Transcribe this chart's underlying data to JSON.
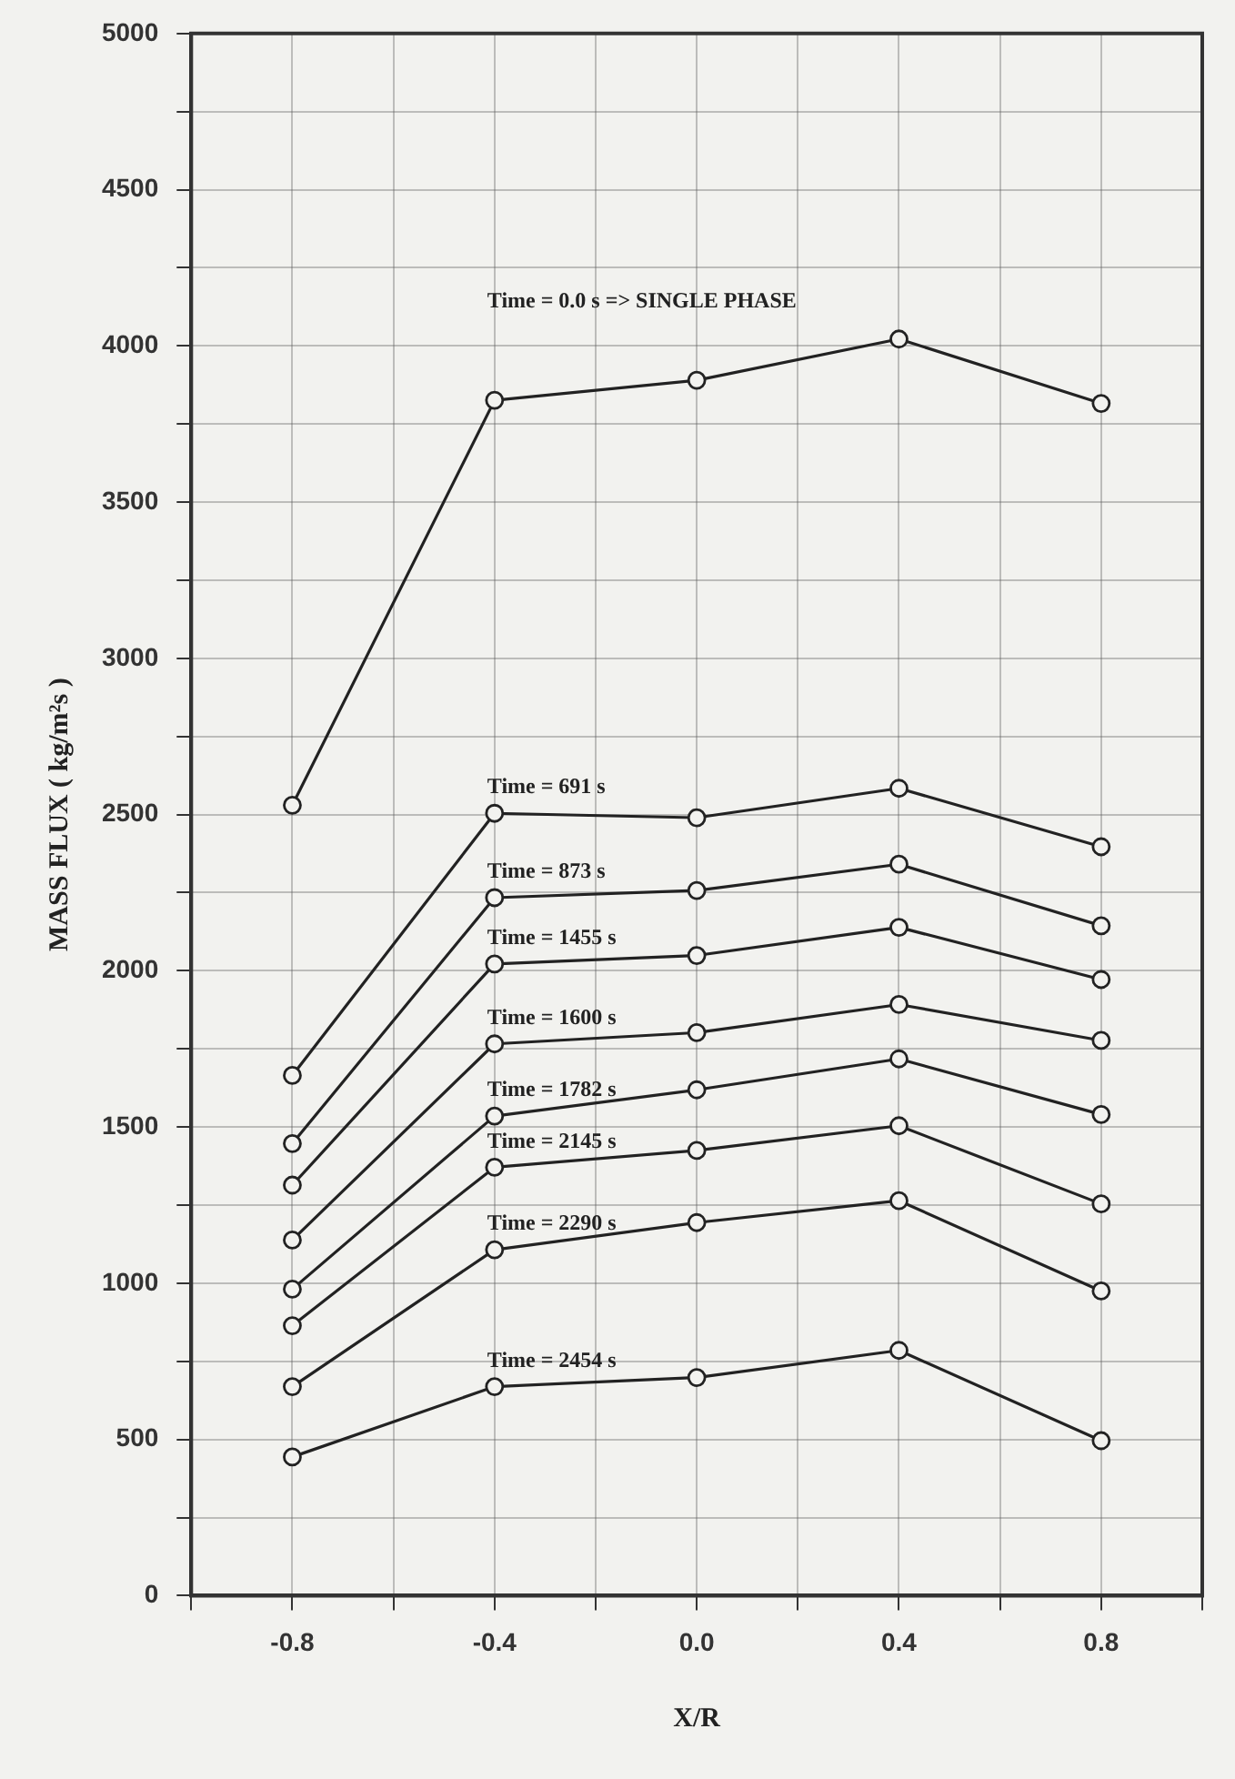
{
  "chart_data": {
    "type": "line",
    "xlabel": "X/R",
    "ylabel": "MASS FLUX ( kg/m²s )",
    "x": [
      -0.8,
      -0.4,
      0.0,
      0.4,
      0.8
    ],
    "series": [
      {
        "name": "Time = 0.0 s => SINGLE PHASE",
        "color": "#222222",
        "values": [
          2530,
          3826,
          3890,
          4022,
          3816
        ]
      },
      {
        "name": "Time = 691 s",
        "color": "#222222",
        "values": [
          1665,
          2504,
          2490,
          2584,
          2397
        ]
      },
      {
        "name": "Time = 873 s",
        "color": "#222222",
        "values": [
          1447,
          2234,
          2257,
          2341,
          2144
        ]
      },
      {
        "name": "Time = 1455 s",
        "color": "#222222",
        "values": [
          1314,
          2022,
          2049,
          2139,
          1972
        ]
      },
      {
        "name": "Time = 1600 s",
        "color": "#222222",
        "values": [
          1138,
          1766,
          1802,
          1892,
          1777
        ]
      },
      {
        "name": "Time = 1782 s",
        "color": "#222222",
        "values": [
          981,
          1535,
          1619,
          1718,
          1540
        ]
      },
      {
        "name": "Time = 2145 s",
        "color": "#222222",
        "values": [
          864,
          1371,
          1425,
          1504,
          1254
        ]
      },
      {
        "name": "Time = 2290 s",
        "color": "#222222",
        "values": [
          669,
          1107,
          1194,
          1264,
          975
        ]
      },
      {
        "name": "Time = 2454 s",
        "color": "#222222",
        "values": [
          444,
          669,
          698,
          785,
          496
        ]
      }
    ],
    "xlim": [
      -1.0,
      1.0
    ],
    "xticks": [
      {
        "value": -1.0,
        "label": null
      },
      -0.8,
      {
        "value": -0.6,
        "label": null
      },
      -0.4,
      {
        "value": -0.2,
        "label": null
      },
      {
        "value": 0,
        "label": "0.0"
      },
      {
        "value": 0.2,
        "label": null
      },
      0.4,
      {
        "value": 0.6,
        "label": null
      },
      0.8,
      {
        "value": 1.0,
        "label": null
      }
    ],
    "ylim": [
      0,
      5000
    ],
    "yticks": [
      0,
      {
        "value": 250,
        "label": null
      },
      500,
      {
        "value": 750,
        "label": null
      },
      1000,
      {
        "value": 1250,
        "label": null
      },
      1500,
      {
        "value": 1750,
        "label": null
      },
      2000,
      {
        "value": 2250,
        "label": null
      },
      2500,
      {
        "value": 2750,
        "label": null
      },
      3000,
      {
        "value": 3250,
        "label": null
      },
      3500,
      {
        "value": 3750,
        "label": null
      },
      4000,
      {
        "value": 4250,
        "label": null
      },
      4500,
      {
        "value": 4750,
        "label": null
      },
      5000
    ],
    "grid": true,
    "legend": false,
    "marker": "circle",
    "line_style": "solid"
  }
}
